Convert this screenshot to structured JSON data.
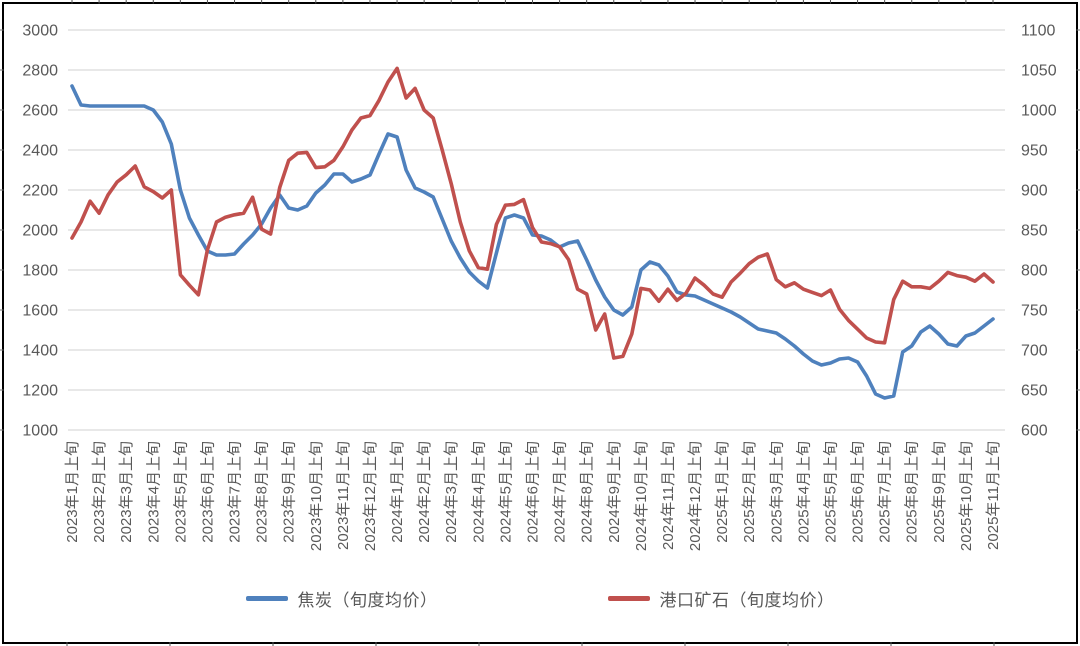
{
  "chart_data": {
    "type": "line",
    "title": "",
    "grid": "horizontal-only",
    "gridline_color": "#D9D9D9",
    "label_color": "#595959",
    "legend_position": "bottom-center",
    "points_per_month": 3,
    "x_axis": {
      "unit": "旬 (10-day period: 上旬/中旬/下旬, 3 data points per month)",
      "tick_labels": [
        "2023年1月上旬",
        "2023年2月上旬",
        "2023年3月上旬",
        "2023年4月上旬",
        "2023年5月上旬",
        "2023年6月上旬",
        "2023年7月上旬",
        "2023年8月上旬",
        "2023年9月上旬",
        "2023年10月上旬",
        "2023年11月上旬",
        "2023年12月上旬",
        "2024年1月上旬",
        "2024年2月上旬",
        "2024年3月上旬",
        "2024年4月上旬",
        "2024年5月上旬",
        "2024年6月上旬",
        "2024年7月上旬",
        "2024年8月上旬",
        "2024年9月上旬",
        "2024年10月上旬",
        "2024年11月上旬",
        "2024年12月上旬",
        "2025年1月上旬",
        "2025年2月上旬",
        "2025年3月上旬",
        "2025年4月上旬",
        "2025年5月上旬",
        "2025年6月上旬",
        "2025年7月上旬",
        "2025年8月上旬",
        "2025年9月上旬",
        "2025年10月上旬",
        "2025年11月上旬"
      ]
    },
    "left_axis": {
      "min": 1000,
      "max": 3000,
      "step": 200,
      "ticks": [
        3000,
        2800,
        2600,
        2400,
        2200,
        2000,
        1800,
        1600,
        1400,
        1200,
        1000
      ]
    },
    "right_axis": {
      "min": 600,
      "max": 1100,
      "step": 50,
      "ticks": [
        1100,
        1050,
        1000,
        950,
        900,
        850,
        800,
        750,
        700,
        650,
        600
      ]
    },
    "series": [
      {
        "name": "焦炭（旬度均价）",
        "axis": "left",
        "color": "#4F81BD",
        "values": [
          2720,
          2625,
          2620,
          2620,
          2620,
          2620,
          2620,
          2620,
          2620,
          2600,
          2540,
          2430,
          2200,
          2060,
          1975,
          1895,
          1875,
          1875,
          1880,
          1930,
          1975,
          2030,
          2110,
          2175,
          2110,
          2100,
          2120,
          2185,
          2225,
          2280,
          2280,
          2240,
          2255,
          2275,
          2380,
          2480,
          2465,
          2300,
          2210,
          2190,
          2165,
          2055,
          1945,
          1860,
          1790,
          1745,
          1710,
          1885,
          2060,
          2075,
          2060,
          1975,
          1970,
          1950,
          1915,
          1935,
          1945,
          1850,
          1750,
          1665,
          1600,
          1575,
          1615,
          1800,
          1840,
          1825,
          1770,
          1690,
          1675,
          1670,
          1650,
          1630,
          1610,
          1590,
          1565,
          1535,
          1505,
          1495,
          1485,
          1455,
          1420,
          1380,
          1345,
          1325,
          1335,
          1355,
          1360,
          1340,
          1270,
          1180,
          1160,
          1170,
          1390,
          1420,
          1490,
          1520,
          1480,
          1430,
          1420,
          1470,
          1485,
          1520,
          1555
        ]
      },
      {
        "name": "港口矿石（旬度均价）",
        "axis": "right",
        "color": "#C0504D",
        "values": [
          840,
          860,
          886,
          871,
          894,
          910,
          919,
          930,
          904,
          898,
          890,
          900,
          794,
          781,
          769,
          825,
          860,
          866,
          869,
          871,
          891,
          851,
          845,
          903,
          937,
          946,
          947,
          928,
          929,
          937,
          954,
          975,
          990,
          993,
          1012,
          1035,
          1052,
          1015,
          1027,
          1000,
          990,
          950,
          908,
          860,
          824,
          803,
          801,
          857,
          881,
          882,
          888,
          853,
          835,
          833,
          829,
          813,
          776,
          770,
          725,
          745,
          690,
          692,
          720,
          777,
          775,
          761,
          776,
          762,
          771,
          790,
          781,
          770,
          766,
          785,
          796,
          808,
          816,
          820,
          788,
          779,
          784,
          776,
          772,
          768,
          775,
          751,
          737,
          726,
          715,
          710,
          709,
          763,
          786,
          779,
          779,
          777,
          786,
          797,
          793,
          791,
          786,
          795,
          785
        ]
      }
    ]
  }
}
